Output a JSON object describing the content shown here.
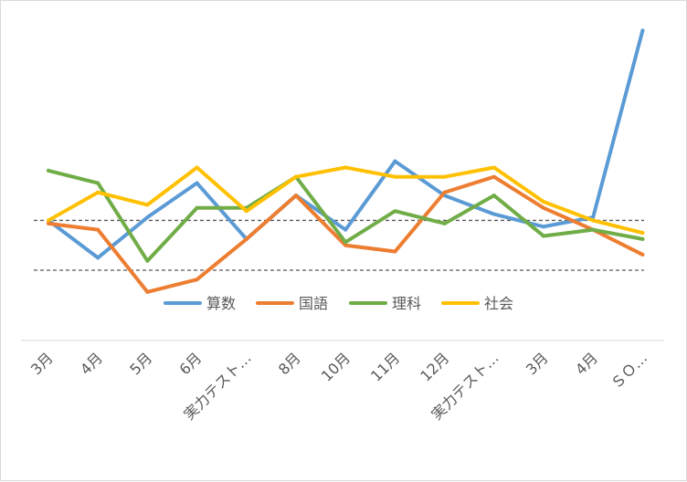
{
  "chart_data": {
    "type": "line",
    "categories": [
      "3月",
      "4月",
      "5月",
      "6月",
      "実力テスト…",
      "8月",
      "10月",
      "11月",
      "12月",
      "実力テスト…",
      "3月",
      "4月",
      "ＳＯ…"
    ],
    "series": [
      {
        "name": "算数",
        "color": "#5B9BD5",
        "values": [
          58,
          46,
          59,
          70,
          52,
          66,
          55,
          77,
          66,
          60,
          56,
          59,
          119
        ]
      },
      {
        "name": "国語",
        "color": "#ED7D31",
        "values": [
          57,
          55,
          35,
          39,
          52,
          66,
          50,
          48,
          67,
          72,
          62,
          55,
          47
        ]
      },
      {
        "name": "理科",
        "color": "#70AD47",
        "values": [
          74,
          70,
          45,
          62,
          62,
          72,
          51,
          61,
          57,
          66,
          53,
          55,
          52
        ]
      },
      {
        "name": "社会",
        "color": "#FFC000",
        "values": [
          58,
          67,
          63,
          75,
          61,
          72,
          75,
          72,
          72,
          75,
          64,
          58,
          54
        ]
      }
    ],
    "reference_lines": [
      58,
      42
    ],
    "ylim": [
      20,
      125
    ],
    "grid": false,
    "legend": "bottom",
    "title": "",
    "xlabel": "",
    "ylabel": ""
  }
}
